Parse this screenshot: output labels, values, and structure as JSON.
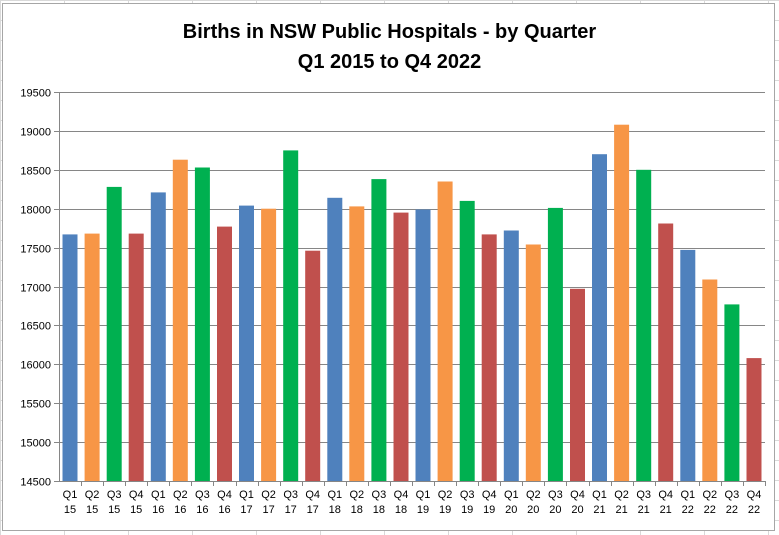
{
  "chart_data": {
    "type": "bar",
    "title": "Births in NSW Public Hospitals - by Quarter",
    "subtitle": "Q1 2015 to Q4 2022",
    "xlabel": "",
    "ylabel": "",
    "ylim": [
      14500,
      19500
    ],
    "yticks": [
      "14500",
      "15000",
      "15500",
      "16000",
      "16500",
      "17000",
      "17500",
      "18000",
      "18500",
      "19000",
      "19500"
    ],
    "grid": true,
    "legend": "none",
    "categories": [
      {
        "q": "Q1",
        "yr": "15"
      },
      {
        "q": "Q2",
        "yr": "15"
      },
      {
        "q": "Q3",
        "yr": "15"
      },
      {
        "q": "Q4",
        "yr": "15"
      },
      {
        "q": "Q1",
        "yr": "16"
      },
      {
        "q": "Q2",
        "yr": "16"
      },
      {
        "q": "Q3",
        "yr": "16"
      },
      {
        "q": "Q4",
        "yr": "16"
      },
      {
        "q": "Q1",
        "yr": "17"
      },
      {
        "q": "Q2",
        "yr": "17"
      },
      {
        "q": "Q3",
        "yr": "17"
      },
      {
        "q": "Q4",
        "yr": "17"
      },
      {
        "q": "Q1",
        "yr": "18"
      },
      {
        "q": "Q2",
        "yr": "18"
      },
      {
        "q": "Q3",
        "yr": "18"
      },
      {
        "q": "Q4",
        "yr": "18"
      },
      {
        "q": "Q1",
        "yr": "19"
      },
      {
        "q": "Q2",
        "yr": "19"
      },
      {
        "q": "Q3",
        "yr": "19"
      },
      {
        "q": "Q4",
        "yr": "19"
      },
      {
        "q": "Q1",
        "yr": "20"
      },
      {
        "q": "Q2",
        "yr": "20"
      },
      {
        "q": "Q3",
        "yr": "20"
      },
      {
        "q": "Q4",
        "yr": "20"
      },
      {
        "q": "Q1",
        "yr": "21"
      },
      {
        "q": "Q2",
        "yr": "21"
      },
      {
        "q": "Q3",
        "yr": "21"
      },
      {
        "q": "Q4",
        "yr": "21"
      },
      {
        "q": "Q1",
        "yr": "22"
      },
      {
        "q": "Q2",
        "yr": "22"
      },
      {
        "q": "Q3",
        "yr": "22"
      },
      {
        "q": "Q4",
        "yr": "22"
      }
    ],
    "values": [
      17670,
      17680,
      18280,
      17680,
      18210,
      18630,
      18530,
      17770,
      18040,
      18000,
      18750,
      17460,
      18140,
      18030,
      18380,
      17950,
      17990,
      18350,
      18100,
      17670,
      17720,
      17540,
      18010,
      16970,
      18700,
      19080,
      18500,
      17810,
      17470,
      17090,
      16770,
      16080
    ],
    "quarter_colors": {
      "Q1": "#4f81bd",
      "Q2": "#f79646",
      "Q3": "#00b050",
      "Q4": "#c0504d"
    }
  }
}
